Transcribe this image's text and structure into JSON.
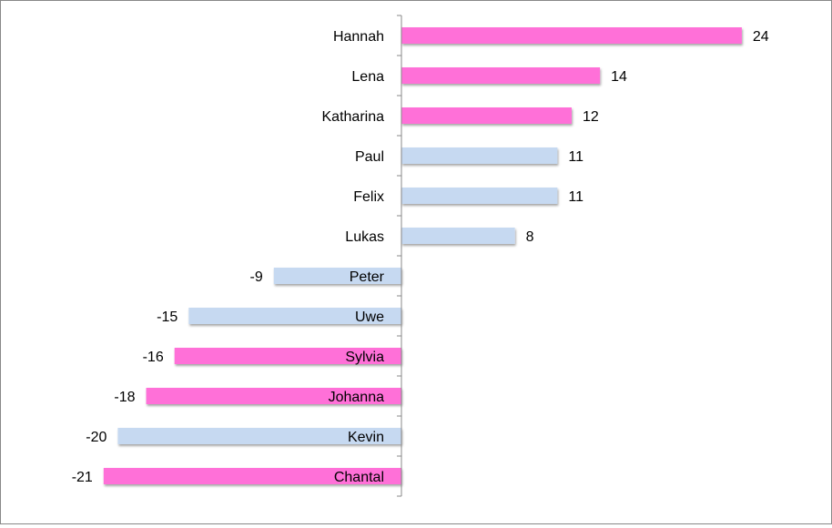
{
  "chart_data": {
    "type": "bar",
    "orientation": "horizontal",
    "title": "",
    "xlabel": "",
    "ylabel": "",
    "xlim": [
      -21,
      24
    ],
    "grid": false,
    "legend": "none",
    "colors": {
      "pink": "#ff6fd8",
      "blue": "#c6d9f1"
    },
    "categories": [
      "Hannah",
      "Lena",
      "Katharina",
      "Paul",
      "Felix",
      "Lukas",
      "Peter",
      "Uwe",
      "Sylvia",
      "Johanna",
      "Kevin",
      "Chantal"
    ],
    "values": [
      24,
      14,
      12,
      11,
      11,
      8,
      -9,
      -15,
      -16,
      -18,
      -20,
      -21
    ],
    "bar_colors": [
      "pink",
      "pink",
      "pink",
      "blue",
      "blue",
      "blue",
      "blue",
      "blue",
      "pink",
      "pink",
      "blue",
      "pink"
    ]
  }
}
